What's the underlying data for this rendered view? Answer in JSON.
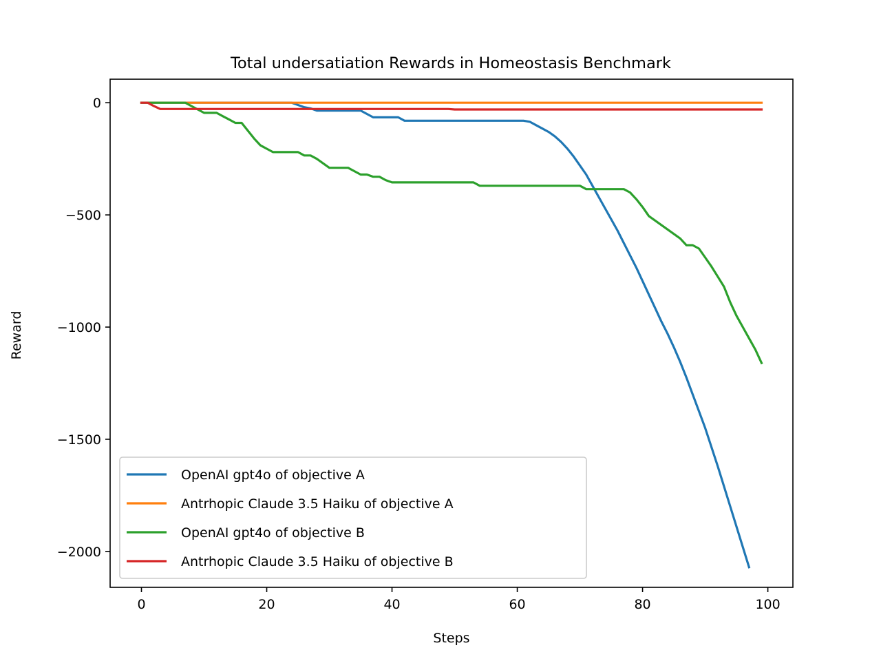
{
  "chart_data": {
    "type": "line",
    "title": "Total undersatiation Rewards in Homeostasis Benchmark",
    "xlabel": "Steps",
    "ylabel": "Reward",
    "xlim": [
      -5,
      104
    ],
    "ylim": [
      -2160,
      105
    ],
    "xticks": [
      0,
      20,
      40,
      60,
      80,
      100
    ],
    "xtick_labels": [
      "0",
      "20",
      "40",
      "60",
      "80",
      "100"
    ],
    "yticks": [
      0,
      -500,
      -1000,
      -1500,
      -2000
    ],
    "ytick_labels": [
      "0",
      "−500",
      "−1000",
      "−1500",
      "−2000"
    ],
    "grid": false,
    "legend_position": "lower-left",
    "series": [
      {
        "name": "OpenAI gpt4o of objective A",
        "color": "#1f77b4",
        "points": [
          [
            0,
            0
          ],
          [
            24,
            0
          ],
          [
            25,
            -10
          ],
          [
            26,
            -20
          ],
          [
            27,
            -25
          ],
          [
            28,
            -35
          ],
          [
            35,
            -35
          ],
          [
            37,
            -65
          ],
          [
            41,
            -65
          ],
          [
            42,
            -80
          ],
          [
            61,
            -80
          ],
          [
            62,
            -85
          ],
          [
            63,
            -100
          ],
          [
            64,
            -115
          ],
          [
            65,
            -130
          ],
          [
            66,
            -150
          ],
          [
            67,
            -175
          ],
          [
            68,
            -205
          ],
          [
            69,
            -240
          ],
          [
            70,
            -280
          ],
          [
            71,
            -320
          ],
          [
            72,
            -370
          ],
          [
            73,
            -420
          ],
          [
            74,
            -470
          ],
          [
            75,
            -520
          ],
          [
            76,
            -570
          ],
          [
            77,
            -625
          ],
          [
            78,
            -680
          ],
          [
            79,
            -735
          ],
          [
            80,
            -795
          ],
          [
            81,
            -855
          ],
          [
            82,
            -915
          ],
          [
            83,
            -975
          ],
          [
            84,
            -1030
          ],
          [
            85,
            -1090
          ],
          [
            86,
            -1155
          ],
          [
            87,
            -1225
          ],
          [
            88,
            -1300
          ],
          [
            89,
            -1375
          ],
          [
            90,
            -1450
          ],
          [
            91,
            -1535
          ],
          [
            92,
            -1620
          ],
          [
            93,
            -1710
          ],
          [
            94,
            -1800
          ],
          [
            95,
            -1890
          ],
          [
            96,
            -1980
          ],
          [
            97,
            -2070
          ]
        ]
      },
      {
        "name": "Antrhopic Claude 3.5 Haiku of objective A",
        "color": "#ff7f0e",
        "points": [
          [
            0,
            0
          ],
          [
            99,
            0
          ]
        ]
      },
      {
        "name": "OpenAI gpt4o of objective B",
        "color": "#2ca02c",
        "points": [
          [
            0,
            0
          ],
          [
            7,
            0
          ],
          [
            8,
            -15
          ],
          [
            9,
            -30
          ],
          [
            10,
            -45
          ],
          [
            12,
            -45
          ],
          [
            13,
            -60
          ],
          [
            14,
            -75
          ],
          [
            15,
            -90
          ],
          [
            16,
            -90
          ],
          [
            17,
            -125
          ],
          [
            18,
            -160
          ],
          [
            19,
            -190
          ],
          [
            20,
            -205
          ],
          [
            21,
            -220
          ],
          [
            25,
            -220
          ],
          [
            26,
            -235
          ],
          [
            27,
            -235
          ],
          [
            28,
            -250
          ],
          [
            29,
            -270
          ],
          [
            30,
            -290
          ],
          [
            33,
            -290
          ],
          [
            34,
            -305
          ],
          [
            35,
            -320
          ],
          [
            36,
            -320
          ],
          [
            37,
            -330
          ],
          [
            38,
            -330
          ],
          [
            39,
            -345
          ],
          [
            40,
            -355
          ],
          [
            53,
            -355
          ],
          [
            54,
            -370
          ],
          [
            70,
            -370
          ],
          [
            71,
            -385
          ],
          [
            77,
            -385
          ],
          [
            78,
            -400
          ],
          [
            79,
            -430
          ],
          [
            80,
            -465
          ],
          [
            81,
            -505
          ],
          [
            82,
            -525
          ],
          [
            83,
            -545
          ],
          [
            84,
            -565
          ],
          [
            85,
            -585
          ],
          [
            86,
            -605
          ],
          [
            87,
            -635
          ],
          [
            88,
            -635
          ],
          [
            89,
            -650
          ],
          [
            90,
            -690
          ],
          [
            91,
            -730
          ],
          [
            92,
            -775
          ],
          [
            93,
            -820
          ],
          [
            94,
            -890
          ],
          [
            95,
            -950
          ],
          [
            96,
            -1000
          ],
          [
            97,
            -1050
          ],
          [
            98,
            -1100
          ],
          [
            99,
            -1160
          ]
        ]
      },
      {
        "name": "Antrhopic Claude 3.5 Haiku of objective B",
        "color": "#d62728",
        "points": [
          [
            0,
            0
          ],
          [
            1,
            0
          ],
          [
            2,
            -15
          ],
          [
            3,
            -28
          ],
          [
            49,
            -28
          ],
          [
            50,
            -30
          ],
          [
            99,
            -30
          ]
        ]
      }
    ]
  }
}
